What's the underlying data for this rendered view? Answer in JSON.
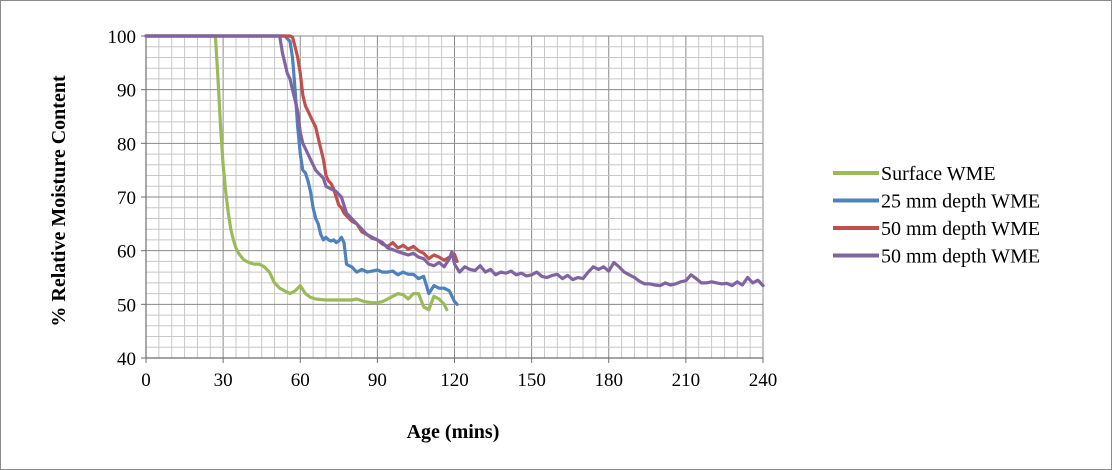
{
  "chart_data": {
    "type": "line",
    "title": "",
    "xlabel": "Age (mins)",
    "ylabel": "% Relative Moisture Content",
    "xlim": [
      0,
      240
    ],
    "ylim": [
      40,
      100
    ],
    "x_ticks": [
      0,
      30,
      60,
      90,
      120,
      150,
      180,
      210,
      240
    ],
    "y_ticks": [
      40,
      50,
      60,
      70,
      80,
      90,
      100
    ],
    "x_tick_labels": [
      "0",
      "30",
      "60",
      "90",
      "120",
      "150",
      "180",
      "210",
      "240"
    ],
    "y_tick_labels": [
      "40",
      "50",
      "60",
      "70",
      "80",
      "90",
      "100"
    ],
    "grid": true,
    "minor_grid": true,
    "legend_position": "right",
    "series": [
      {
        "name": "Surface WME",
        "color": "#9bbb59",
        "x": [
          0,
          27,
          28,
          29,
          30,
          31,
          32,
          33,
          34,
          35,
          36,
          38,
          40,
          42,
          44,
          46,
          48,
          50,
          52,
          54,
          56,
          58,
          60,
          62,
          64,
          66,
          70,
          75,
          80,
          82,
          85,
          88,
          90,
          92,
          94,
          96,
          98,
          100,
          102,
          104,
          106,
          108,
          110,
          112,
          114,
          116,
          117
        ],
        "y": [
          100,
          100,
          92,
          83,
          76,
          71,
          67,
          64,
          62,
          60.5,
          59.5,
          58.3,
          57.8,
          57.5,
          57.5,
          57,
          56,
          54,
          53,
          52.5,
          52,
          52.5,
          53.5,
          52,
          51.3,
          51,
          50.8,
          50.8,
          50.8,
          51,
          50.5,
          50.3,
          50.3,
          50.5,
          51,
          51.5,
          52,
          51.8,
          51,
          52,
          52,
          49.5,
          49,
          51.5,
          51,
          50,
          49
        ]
      },
      {
        "name": "25 mm depth WME",
        "color": "#4f81bd",
        "x": [
          0,
          54,
          56,
          57,
          58,
          59,
          60,
          61,
          62,
          63,
          64,
          65,
          66,
          67,
          68,
          69,
          70,
          71,
          72,
          73,
          74,
          75,
          76,
          77,
          78,
          79,
          80,
          82,
          84,
          86,
          88,
          90,
          92,
          94,
          96,
          98,
          100,
          102,
          104,
          106,
          108,
          110,
          112,
          114,
          116,
          118,
          120,
          121
        ],
        "y": [
          100,
          100,
          99,
          96,
          90,
          83,
          78,
          75,
          74.5,
          73,
          71,
          68,
          66,
          65,
          63,
          62,
          62.5,
          62,
          61.8,
          62,
          61.5,
          61.8,
          62.5,
          61.5,
          57.5,
          57.2,
          57,
          56,
          56.5,
          56,
          56.2,
          56.4,
          56,
          56,
          56.2,
          55.5,
          56,
          55.6,
          55.6,
          54.8,
          55.2,
          52,
          53.5,
          53,
          53,
          52.5,
          50.5,
          50
        ]
      },
      {
        "name": "50 mm depth WME",
        "color": "#c0504d",
        "x": [
          0,
          56,
          57,
          58,
          59,
          60,
          61,
          62,
          63,
          64,
          65,
          66,
          67,
          68,
          69,
          70,
          71,
          72,
          73,
          74,
          75,
          76,
          77,
          78,
          80,
          82,
          84,
          86,
          88,
          90,
          92,
          94,
          96,
          98,
          100,
          102,
          104,
          106,
          108,
          110,
          112,
          114,
          116,
          118,
          120,
          121
        ],
        "y": [
          100,
          100,
          99.8,
          98,
          96,
          93,
          89,
          87,
          86,
          85,
          84,
          83,
          81,
          79,
          77,
          74,
          73,
          72.5,
          71.5,
          70,
          68.5,
          68,
          67,
          66.5,
          65.5,
          65,
          63.5,
          63,
          62.3,
          62,
          61.2,
          60.8,
          61.5,
          60.5,
          61,
          60.3,
          60.8,
          60,
          59.5,
          58.5,
          59.2,
          58.8,
          58.2,
          58.8,
          59.3,
          58
        ]
      },
      {
        "name": "50 mm depth WME",
        "color": "#8064a2",
        "x": [
          0,
          52,
          53,
          54,
          55,
          56,
          57,
          58,
          59,
          60,
          61,
          62,
          63,
          64,
          65,
          66,
          67,
          68,
          69,
          70,
          72,
          74,
          76,
          78,
          80,
          82,
          84,
          86,
          88,
          90,
          92,
          94,
          96,
          98,
          100,
          102,
          104,
          106,
          108,
          110,
          112,
          114,
          116,
          118,
          119,
          120,
          122,
          124,
          126,
          128,
          130,
          132,
          134,
          136,
          138,
          140,
          142,
          144,
          146,
          148,
          150,
          152,
          154,
          156,
          158,
          160,
          162,
          164,
          166,
          168,
          170,
          172,
          174,
          176,
          178,
          180,
          182,
          184,
          186,
          188,
          190,
          192,
          194,
          196,
          198,
          200,
          202,
          204,
          206,
          208,
          210,
          212,
          214,
          216,
          218,
          220,
          222,
          224,
          226,
          228,
          230,
          232,
          234,
          236,
          238,
          240
        ],
        "y": [
          100,
          100,
          97,
          95,
          93,
          92,
          90,
          88,
          86,
          82,
          80,
          79,
          78,
          77,
          76,
          75,
          74.5,
          74,
          73.5,
          72,
          71.5,
          71,
          70,
          67,
          66,
          65,
          64,
          63,
          62.5,
          62,
          61.5,
          60.5,
          60.2,
          59.8,
          59.5,
          59.2,
          59.5,
          58.8,
          58.5,
          57.5,
          57.2,
          57.8,
          57,
          58.5,
          59.8,
          57.5,
          56,
          57,
          56.5,
          56.3,
          57.2,
          56,
          56.5,
          55.5,
          56,
          55.8,
          56.2,
          55.5,
          55.8,
          55.3,
          55.5,
          56,
          55.2,
          55,
          55.4,
          55.6,
          54.8,
          55.4,
          54.6,
          55,
          54.8,
          56,
          57,
          56.5,
          57,
          56.2,
          57.8,
          57,
          56,
          55.5,
          55,
          54.3,
          53.8,
          53.8,
          53.6,
          53.5,
          54,
          53.6,
          53.8,
          54.2,
          54.4,
          55.5,
          54.8,
          54,
          54,
          54.2,
          54,
          53.8,
          53.9,
          53.5,
          54.2,
          53.6,
          55,
          54,
          54.5,
          53.5
        ]
      }
    ]
  }
}
